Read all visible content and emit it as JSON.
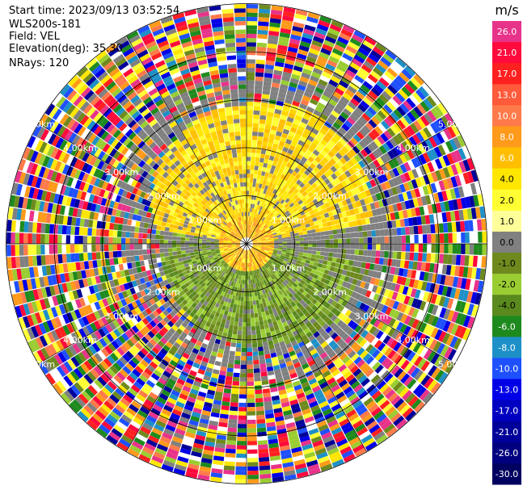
{
  "header": {
    "start_time": "Start time: 2023/09/13 03:52:54",
    "instrument": "WLS200s-181",
    "field": "Field: VEL",
    "elevation": "Elevation(deg): 35.30",
    "nrays": "NRays: 120"
  },
  "colorbar": {
    "unit": "m/s",
    "ticks": [
      "26.0",
      "21.0",
      "17.0",
      "13.0",
      "10.0",
      "8.0",
      "6.0",
      "4.0",
      "2.0",
      "1.0",
      "0.0",
      "-1.0",
      "-2.0",
      "-4.0",
      "-6.0",
      "-8.0",
      "-10.0",
      "-13.0",
      "-17.0",
      "-21.0",
      "-26.0",
      "-30.0"
    ],
    "colors": [
      "#e8338a",
      "#ff0a3c",
      "#ff2020",
      "#ff5a3a",
      "#ff7a4a",
      "#ff9a1a",
      "#ffbf00",
      "#ffe600",
      "#ffff33",
      "#ffff99",
      "#808080",
      "#6e8a1e",
      "#9acd32",
      "#5a8a1e",
      "#1e8a1e",
      "#1e90c8",
      "#1e50ff",
      "#0000e6",
      "#0000c0",
      "#00009a",
      "#000080",
      "#000060"
    ]
  },
  "chart_data": {
    "type": "ppi",
    "field": "VEL",
    "rays": 120,
    "range_rings_km": [
      1,
      2,
      3,
      4,
      5
    ],
    "ring_labels": [
      "1.00km",
      "2.00km",
      "3.00km",
      "4.00km",
      "5.00km"
    ],
    "colors": {
      "noise": [
        "#e8338a",
        "#ff0a3c",
        "#ff2020",
        "#ff7a4a",
        "#ff9a1a",
        "#ffe600",
        "#ffff33",
        "#808080",
        "#6e8a1e",
        "#9acd32",
        "#1e8a1e",
        "#1e90c8",
        "#1e50ff",
        "#0000e6",
        "#00009a",
        "#ffffff"
      ],
      "towards": [
        "#ffe600",
        "#ffff33",
        "#ffbf00",
        "#ffd400"
      ],
      "away": [
        "#6e8a1e",
        "#9acd32",
        "#5a8a1e",
        "#7fa62a"
      ],
      "zero": "#808080"
    }
  }
}
